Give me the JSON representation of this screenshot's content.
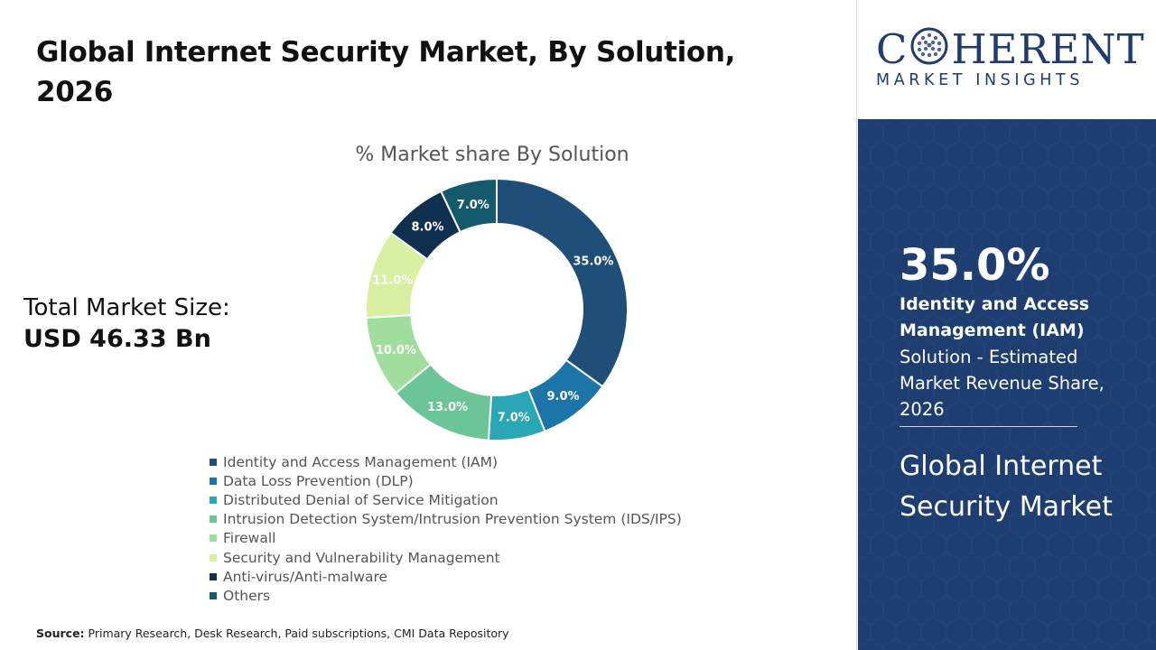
{
  "page": {
    "title": "Global Internet Security Market, By Solution, 2026",
    "market_size_label": "Total Market Size:",
    "market_size_value": "USD 46.33 Bn",
    "source_label": "Source:",
    "source_text": " Primary Research, Desk Research, Paid subscriptions, CMI Data Repository"
  },
  "logo": {
    "line1_pre": "C",
    "line1_post": "HERENT",
    "line2": "MARKET INSIGHTS"
  },
  "highlight": {
    "value": "35.0%",
    "name": "Identity and Access Management (IAM)",
    "description": "Solution - Estimated Market Revenue Share, 2026",
    "market_name": "Global Internet Security Market"
  },
  "chart_data": {
    "type": "pie",
    "donut": true,
    "title": "% Market share By Solution",
    "legend_position": "bottom",
    "categories": [
      "Identity and Access Management (IAM)",
      "Data Loss Prevention (DLP)",
      "Distributed Denial of Service Mitigation",
      "Intrusion Detection System/Intrusion Prevention System (IDS/IPS)",
      "Firewall",
      "Security and Vulnerability Management",
      "Anti-virus/Anti-malware",
      "Others"
    ],
    "values": [
      35.0,
      9.0,
      7.0,
      13.0,
      10.0,
      11.0,
      8.0,
      7.0
    ],
    "data_labels": [
      "35.0%",
      "9.0%",
      "7.0%",
      "13.0%",
      "10.0%",
      "11.0%",
      "8.0%",
      "7.0%"
    ],
    "colors": [
      "#1f4e79",
      "#1b75a8",
      "#2aa6b4",
      "#6cc596",
      "#a1de9e",
      "#d9f0a3",
      "#10304f",
      "#155a6c"
    ]
  }
}
